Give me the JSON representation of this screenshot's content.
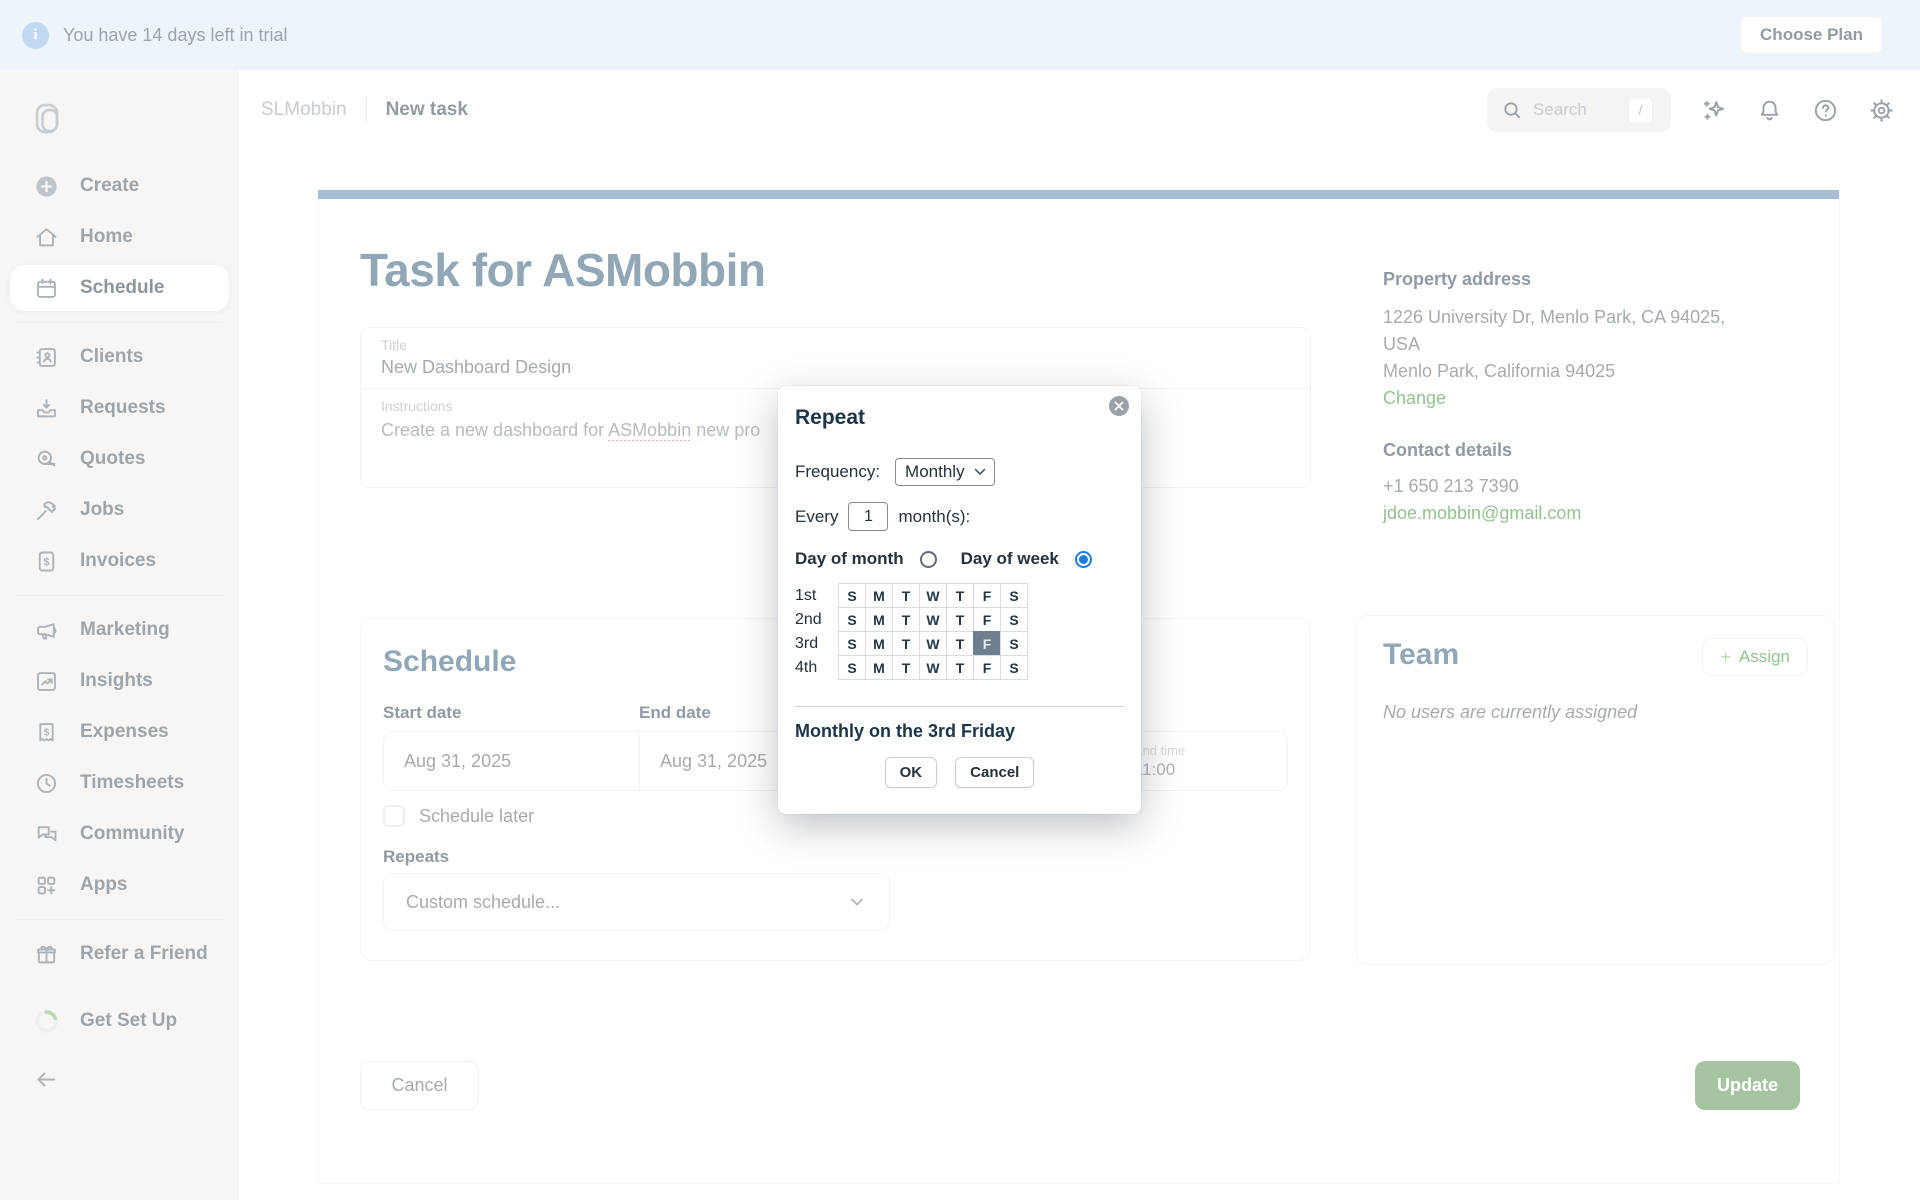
{
  "banner": {
    "text": "You have 14 days left in trial",
    "choose_plan_label": "Choose Plan"
  },
  "topbar": {
    "breadcrumb_account": "SLMobbin",
    "breadcrumb_page": "New task",
    "search_placeholder": "Search",
    "search_shortcut": "/"
  },
  "sidebar": {
    "items": [
      {
        "id": "create",
        "label": "Create",
        "icon": "plus-circle-icon"
      },
      {
        "id": "home",
        "label": "Home",
        "icon": "home-icon"
      },
      {
        "id": "schedule",
        "label": "Schedule",
        "icon": "calendar-icon",
        "active": true,
        "divider_after": true
      },
      {
        "id": "clients",
        "label": "Clients",
        "icon": "clients-book-icon"
      },
      {
        "id": "requests",
        "label": "Requests",
        "icon": "inbox-request-icon"
      },
      {
        "id": "quotes",
        "label": "Quotes",
        "icon": "tape-measure-icon"
      },
      {
        "id": "jobs",
        "label": "Jobs",
        "icon": "hammer-icon"
      },
      {
        "id": "invoices",
        "label": "Invoices",
        "icon": "invoice-icon",
        "divider_after": true
      },
      {
        "id": "marketing",
        "label": "Marketing",
        "icon": "megaphone-icon"
      },
      {
        "id": "insights",
        "label": "Insights",
        "icon": "chart-doc-icon"
      },
      {
        "id": "expenses",
        "label": "Expenses",
        "icon": "receipt-icon"
      },
      {
        "id": "timesheets",
        "label": "Timesheets",
        "icon": "clock-icon"
      },
      {
        "id": "community",
        "label": "Community",
        "icon": "chat-bubbles-icon"
      },
      {
        "id": "apps",
        "label": "Apps",
        "icon": "apps-grid-icon",
        "divider_after": true
      },
      {
        "id": "refer-a-friend",
        "label": "Refer a Friend",
        "icon": "gift-icon"
      },
      {
        "id": "get-set-up",
        "label": "Get Set Up",
        "icon": "progress-ring-icon",
        "gap": true
      },
      {
        "id": "collapse",
        "label": "",
        "icon": "arrow-left-icon",
        "back": true
      }
    ]
  },
  "task": {
    "page_title": "Task for ASMobbin",
    "title_label": "Title",
    "title_value": "New Dashboard Design",
    "instructions_label": "Instructions",
    "instructions_parts": {
      "0": "Create a new dashboard for ",
      "1": "ASMobbin",
      "2": " new pro"
    }
  },
  "schedule": {
    "heading": "Schedule",
    "start_date_label": "Start date",
    "end_date_label": "End date",
    "start_date_value": "Aug 31, 2025",
    "end_date_value": "Aug 31, 2025",
    "end_time_label": "End time",
    "end_time_value": "11:00",
    "schedule_later_label": "Schedule later",
    "repeats_label": "Repeats",
    "repeats_value": "Custom schedule..."
  },
  "property": {
    "title": "Property address",
    "address_lines": {
      "0": "1226 University Dr, Menlo Park, CA 94025,",
      "1": "USA",
      "2": "Menlo Park, California 94025"
    },
    "change_label": "Change",
    "contact_title": "Contact details",
    "phone": "+1 650 213 7390",
    "email": "jdoe.mobbin@gmail.com"
  },
  "team": {
    "heading": "Team",
    "assign_plus": "+",
    "assign_label": "Assign",
    "empty_text": "No users are currently assigned"
  },
  "actions": {
    "cancel_label": "Cancel",
    "update_label": "Update"
  },
  "modal": {
    "title": "Repeat",
    "frequency_label": "Frequency:",
    "frequency_value": "Monthly",
    "every_prefix": "Every",
    "every_value": "1",
    "every_suffix": "month(s):",
    "day_of_month_label": "Day of month",
    "day_of_week_label": "Day of week",
    "selected_mode": "day_of_week",
    "grid": {
      "row_labels": [
        "1st",
        "2nd",
        "3rd",
        "4th"
      ],
      "day_letters": [
        "S",
        "M",
        "T",
        "W",
        "T",
        "F",
        "S"
      ],
      "selected": {
        "row_index": 2,
        "col_index": 5,
        "meaning": "3rd Friday"
      }
    },
    "summary": "Monthly on the 3rd Friday",
    "ok_label": "OK",
    "cancel_label": "Cancel"
  },
  "colors": {
    "accent_bar": "#628ab0",
    "link_green": "#3b8f35",
    "update_green": "#5b9652",
    "selected_cell": "#6d7e8e",
    "radio_blue": "#1f7ce0",
    "banner_bg": "#deebf7"
  }
}
